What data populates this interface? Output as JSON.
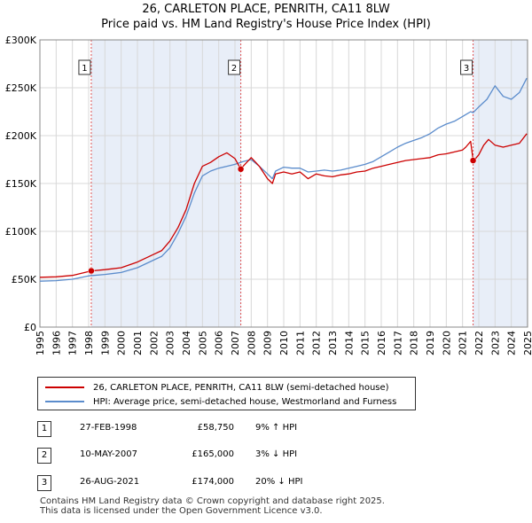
{
  "title_line1": "26, CARLETON PLACE, PENRITH, CA11 8LW",
  "title_line2": "Price paid vs. HM Land Registry's House Price Index (HPI)",
  "legend": {
    "property": "26, CARLETON PLACE, PENRITH, CA11 8LW (semi-detached house)",
    "hpi": "HPI: Average price, semi-detached house, Westmorland and Furness"
  },
  "transactions": [
    {
      "num": "1",
      "date": "27-FEB-1998",
      "price": "£58,750",
      "hpi": "9% ↑ HPI"
    },
    {
      "num": "2",
      "date": "10-MAY-2007",
      "price": "£165,000",
      "hpi": "3% ↓ HPI"
    },
    {
      "num": "3",
      "date": "26-AUG-2021",
      "price": "£174,000",
      "hpi": "20% ↓ HPI"
    }
  ],
  "footer": {
    "line1": "Contains HM Land Registry data © Crown copyright and database right 2025.",
    "line2": "This data is licensed under the Open Government Licence v3.0."
  },
  "colors": {
    "property": "#cc0000",
    "hpi": "#5b8ccc",
    "shade": "#e8eef8",
    "vline": "#e05050"
  },
  "chart_data": {
    "type": "line",
    "title": "26, CARLETON PLACE, PENRITH, CA11 8LW",
    "subtitle": "Price paid vs. HM Land Registry's House Price Index (HPI)",
    "xlabel": "",
    "ylabel": "",
    "xlim": [
      1995,
      2025
    ],
    "ylim": [
      0,
      300000
    ],
    "yticks": [
      0,
      50000,
      100000,
      150000,
      200000,
      250000,
      300000
    ],
    "ytick_labels": [
      "£0",
      "£50K",
      "£100K",
      "£150K",
      "£200K",
      "£250K",
      "£300K"
    ],
    "xticks": [
      "1995",
      "1996",
      "1997",
      "1998",
      "1999",
      "2000",
      "2001",
      "2002",
      "2003",
      "2004",
      "2005",
      "2006",
      "2007",
      "2008",
      "2009",
      "2010",
      "2011",
      "2012",
      "2013",
      "2014",
      "2015",
      "2016",
      "2017",
      "2018",
      "2019",
      "2020",
      "2021",
      "2022",
      "2023",
      "2024",
      "2025"
    ],
    "grid": true,
    "legend_position": "below",
    "series": [
      {
        "name": "26, CARLETON PLACE, PENRITH, CA11 8LW (semi-detached house)",
        "x": [
          1995.0,
          1996.0,
          1997.0,
          1998.16,
          1999.0,
          2000.0,
          2001.0,
          2002.0,
          2002.5,
          2003.0,
          2003.5,
          2004.0,
          2004.5,
          2005.0,
          2005.5,
          2006.0,
          2006.5,
          2007.0,
          2007.36,
          2007.5,
          2008.0,
          2008.5,
          2009.0,
          2009.3,
          2009.5,
          2010.0,
          2010.5,
          2011.0,
          2011.5,
          2012.0,
          2012.5,
          2013.0,
          2013.5,
          2014.0,
          2014.5,
          2015.0,
          2015.5,
          2016.0,
          2016.5,
          2017.0,
          2017.5,
          2018.0,
          2018.5,
          2019.0,
          2019.5,
          2020.0,
          2020.5,
          2021.0,
          2021.2,
          2021.5,
          2021.65,
          2021.8,
          2022.0,
          2022.3,
          2022.6,
          2023.0,
          2023.5,
          2024.0,
          2024.5,
          2024.95
        ],
        "values": [
          52000,
          52500,
          54000,
          58750,
          60000,
          62000,
          68000,
          76000,
          80000,
          90000,
          104000,
          123000,
          150000,
          168000,
          172000,
          178000,
          182000,
          176000,
          165000,
          168000,
          177000,
          168000,
          155000,
          150000,
          160000,
          162000,
          160000,
          162000,
          155000,
          160000,
          158000,
          157000,
          159000,
          160000,
          162000,
          163000,
          166000,
          168000,
          170000,
          172000,
          174000,
          175000,
          176000,
          177000,
          180000,
          181000,
          183000,
          185000,
          188000,
          194000,
          174000,
          176000,
          180000,
          190000,
          196000,
          190000,
          188000,
          190000,
          192000,
          202000
        ]
      },
      {
        "name": "HPI: Average price, semi-detached house, Westmorland and Furness",
        "x": [
          1995.0,
          1996.0,
          1997.0,
          1998.0,
          1999.0,
          2000.0,
          2001.0,
          2002.0,
          2002.5,
          2003.0,
          2003.5,
          2004.0,
          2004.5,
          2005.0,
          2005.5,
          2006.0,
          2006.5,
          2007.0,
          2007.5,
          2008.0,
          2008.5,
          2009.0,
          2009.3,
          2009.5,
          2010.0,
          2010.5,
          2011.0,
          2011.5,
          2012.0,
          2012.5,
          2013.0,
          2013.5,
          2014.0,
          2014.5,
          2015.0,
          2015.5,
          2016.0,
          2016.5,
          2017.0,
          2017.5,
          2018.0,
          2018.5,
          2019.0,
          2019.5,
          2020.0,
          2020.5,
          2021.0,
          2021.5,
          2021.65,
          2022.0,
          2022.5,
          2023.0,
          2023.5,
          2024.0,
          2024.5,
          2024.95
        ],
        "values": [
          48000,
          48500,
          50000,
          53500,
          55000,
          57000,
          62000,
          70000,
          74000,
          83000,
          98000,
          116000,
          140000,
          158000,
          163000,
          166000,
          168000,
          170000,
          173000,
          175000,
          168000,
          160000,
          155000,
          163000,
          167000,
          166000,
          166000,
          162000,
          163000,
          164000,
          163000,
          164000,
          166000,
          168000,
          170000,
          173000,
          178000,
          183000,
          188000,
          192000,
          195000,
          198000,
          202000,
          208000,
          212000,
          215000,
          220000,
          225000,
          224000,
          230000,
          238000,
          252000,
          241000,
          238000,
          245000,
          260000
        ]
      }
    ],
    "markers": [
      {
        "label": "1",
        "x": 1998.16,
        "y": 58750
      },
      {
        "label": "2",
        "x": 2007.36,
        "y": 165000
      },
      {
        "label": "3",
        "x": 2021.65,
        "y": 174000
      }
    ]
  }
}
